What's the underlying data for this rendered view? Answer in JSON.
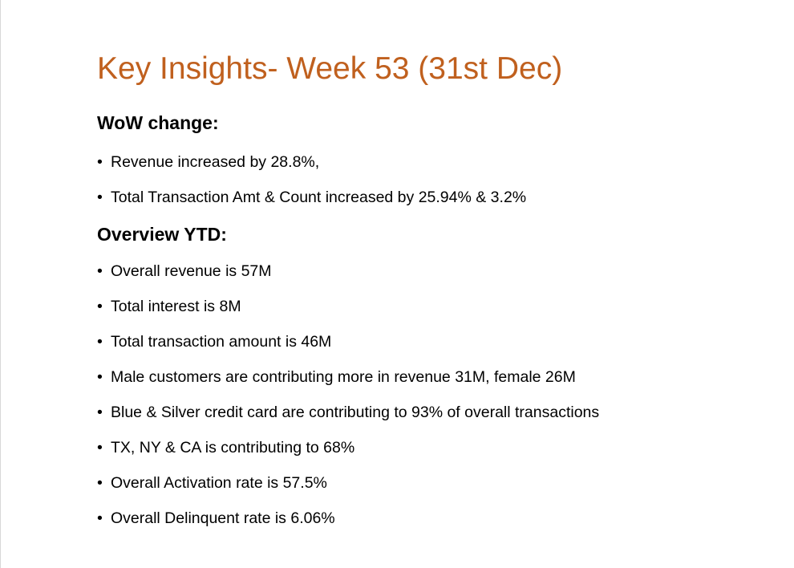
{
  "title": "Key Insights- Week 53 (31st Dec)",
  "sections": {
    "wow": {
      "heading": "WoW change:",
      "items": [
        "Revenue increased by 28.8%,",
        "Total Transaction Amt & Count increased by 25.94% & 3.2%"
      ]
    },
    "ytd": {
      "heading": "Overview YTD:",
      "items": [
        "Overall revenue is 57M",
        "Total interest is 8M",
        "Total transaction amount is 46M",
        "Male customers are contributing more in revenue 31M, female 26M",
        "Blue & Silver credit card are contributing to 93% of overall transactions",
        "TX, NY & CA is contributing to 68%",
        "Overall Activation rate is 57.5%",
        "Overall Delinquent rate is 6.06%"
      ]
    }
  },
  "bullet_symbol": "•",
  "colors": {
    "title": "#c0601e",
    "text": "#000000"
  }
}
